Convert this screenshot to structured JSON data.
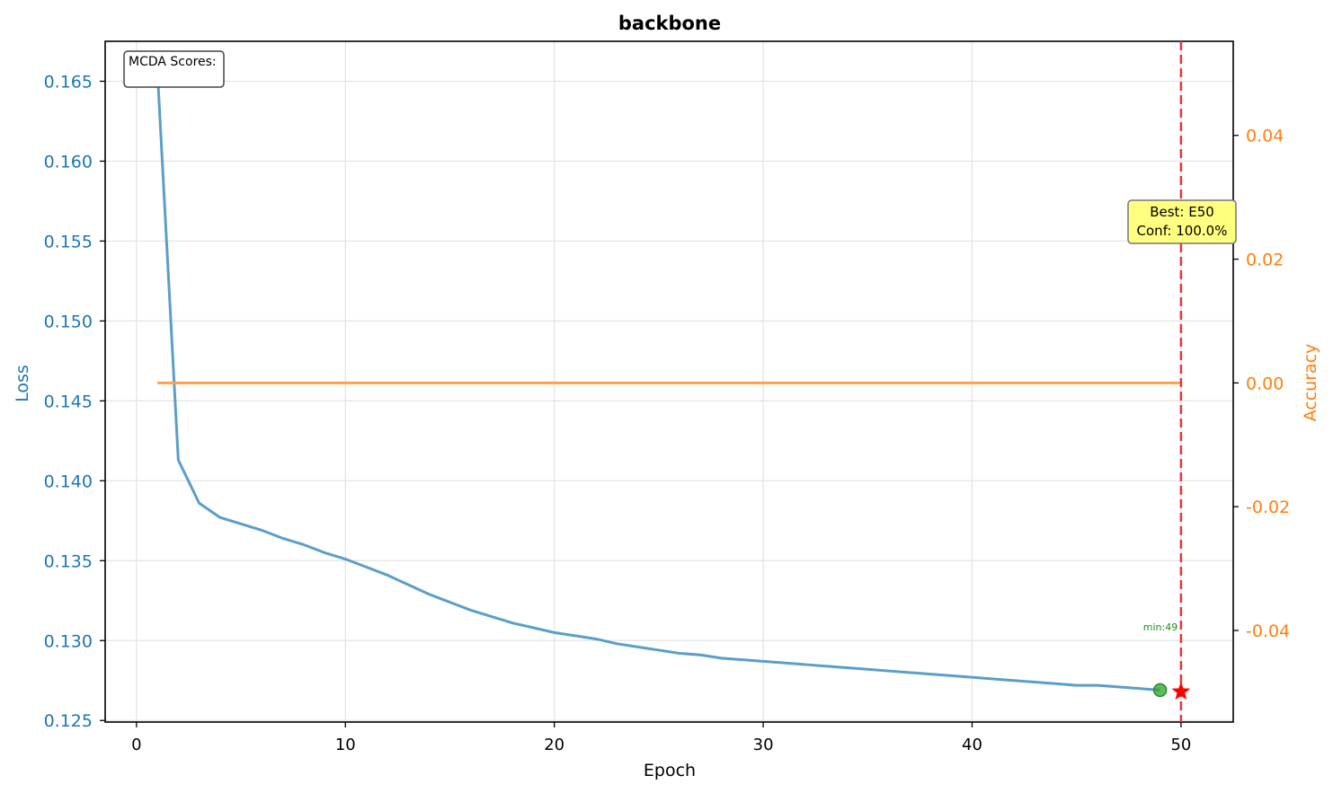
{
  "chart_data": {
    "type": "line",
    "title": "backbone",
    "xlabel": "Epoch",
    "ylabel_left": "Loss",
    "ylabel_right": "Accuracy",
    "xlim": [
      -1.5,
      52.5
    ],
    "ylim_left": [
      0.1249,
      0.1675
    ],
    "ylim_right": [
      -0.0548,
      0.0552
    ],
    "x_ticks": [
      0,
      10,
      20,
      30,
      40,
      50
    ],
    "y_left_ticks": [
      0.125,
      0.13,
      0.135,
      0.14,
      0.145,
      0.15,
      0.155,
      0.16,
      0.165
    ],
    "y_right_ticks": [
      -0.04,
      -0.02,
      0.0,
      0.02,
      0.04
    ],
    "grid": true,
    "colors": {
      "loss": "#5b9ec9",
      "loss_axis": "#1f77b4",
      "accuracy": "#ffa04a",
      "accuracy_axis": "#ff7f0e",
      "best_line": "#ee3333",
      "min_marker": "#2ca02c",
      "best_star": "#ff0000"
    },
    "series": [
      {
        "name": "Loss",
        "axis": "left",
        "x": [
          1,
          2,
          3,
          4,
          5,
          6,
          7,
          8,
          9,
          10,
          11,
          12,
          13,
          14,
          15,
          16,
          17,
          18,
          19,
          20,
          21,
          22,
          23,
          24,
          25,
          26,
          27,
          28,
          29,
          30,
          31,
          32,
          33,
          34,
          35,
          36,
          37,
          38,
          39,
          40,
          41,
          42,
          43,
          44,
          45,
          46,
          47,
          48,
          49
        ],
        "values": [
          0.1657,
          0.1413,
          0.1386,
          0.1377,
          0.1373,
          0.1369,
          0.1364,
          0.136,
          0.1355,
          0.1351,
          0.1346,
          0.1341,
          0.1335,
          0.1329,
          0.1324,
          0.1319,
          0.1315,
          0.1311,
          0.1308,
          0.1305,
          0.1303,
          0.1301,
          0.1298,
          0.1296,
          0.1294,
          0.1292,
          0.1291,
          0.1289,
          0.1288,
          0.1287,
          0.1286,
          0.1285,
          0.1284,
          0.1283,
          0.1282,
          0.1281,
          0.128,
          0.1279,
          0.1278,
          0.1277,
          0.1276,
          0.1275,
          0.1274,
          0.1273,
          0.1272,
          0.1272,
          0.1271,
          0.127,
          0.1269
        ]
      },
      {
        "name": "Accuracy",
        "axis": "right",
        "x": [
          1,
          50
        ],
        "values": [
          0.0,
          0.0
        ]
      }
    ],
    "annotations": {
      "mcda_box": "MCDA Scores:",
      "best_label_line1": "Best: E50",
      "best_label_line2": "Conf: 100.0%",
      "min_label": "min:49",
      "best_epoch": 50,
      "min_point": {
        "x": 49,
        "y": 0.1269
      },
      "best_star_point": {
        "x": 50,
        "y": 0.1268
      }
    }
  }
}
